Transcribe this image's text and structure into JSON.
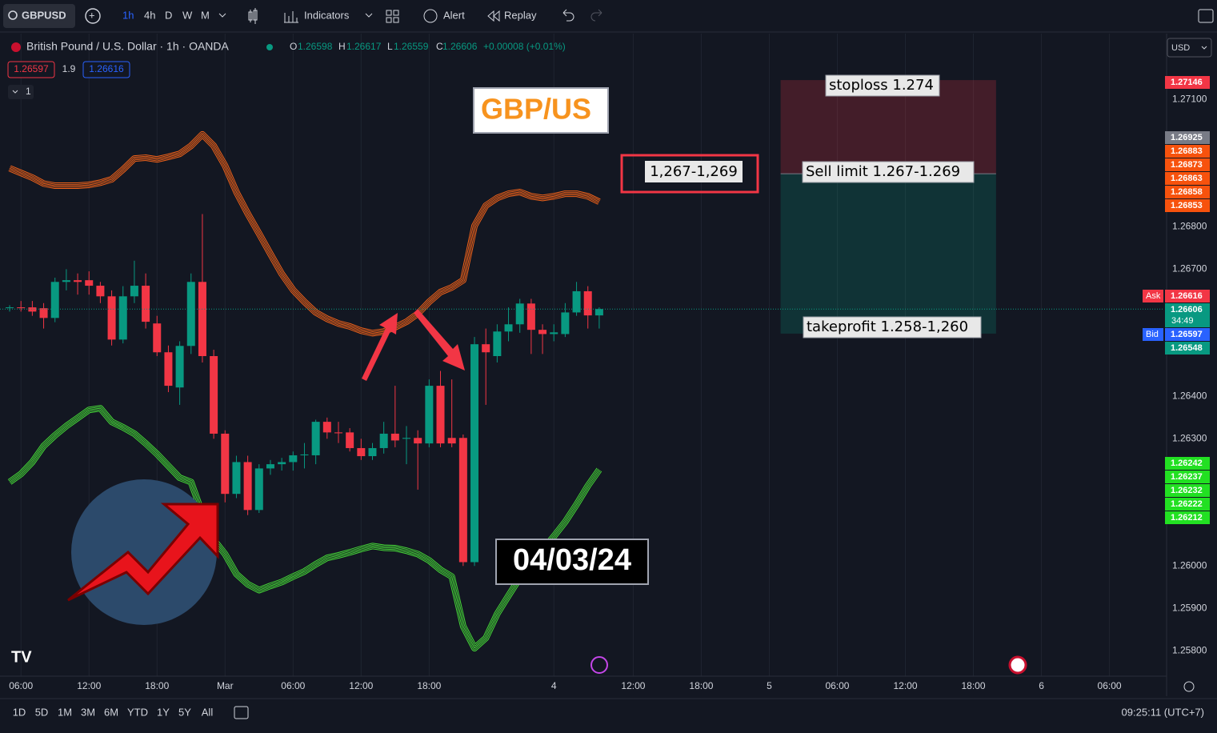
{
  "toolbar": {
    "symbol": "GBPUSD",
    "intervals": [
      "1h",
      "4h",
      "D",
      "W",
      "M"
    ],
    "indicators": "Indicators",
    "alert": "Alert",
    "replay": "Replay"
  },
  "legend": {
    "title": "British Pound / U.S. Dollar · 1h · OANDA",
    "o_label": "O",
    "o": "1.26598",
    "h_label": "H",
    "h": "1.26617",
    "l_label": "L",
    "l": "1.26559",
    "c_label": "C",
    "c": "1.26606",
    "change": "+0.00008 (+0.01%)",
    "bid": "1.26597",
    "spread": "1.9",
    "ask": "1.26616",
    "collapse": "1"
  },
  "currency": "USD",
  "price_tags": [
    {
      "text": "1.27146",
      "color": "#f23645"
    },
    {
      "text": "1.26925",
      "color": "#787b86"
    },
    {
      "text": "1.26883",
      "color": "#f7520d"
    },
    {
      "text": "1.26873",
      "color": "#f7520d"
    },
    {
      "text": "1.26863",
      "color": "#f7520d"
    },
    {
      "text": "1.26858",
      "color": "#f7520d"
    },
    {
      "text": "1.26853",
      "color": "#f7520d"
    },
    {
      "text": "1.26616",
      "color": "#f23645"
    },
    {
      "text": "1.26606",
      "color": "#089981"
    },
    {
      "text": "1.26597",
      "color": "#2962ff"
    },
    {
      "text": "1.26548",
      "color": "#089981"
    },
    {
      "text": "1.26242",
      "color": "#22e022"
    },
    {
      "text": "1.26237",
      "color": "#22e022"
    },
    {
      "text": "1.26232",
      "color": "#22e022"
    },
    {
      "text": "1.26222",
      "color": "#22e022"
    },
    {
      "text": "1.26212",
      "color": "#22e022"
    }
  ],
  "ask_label": "Ask",
  "bid_label": "Bid",
  "countdown": "34:49",
  "annotations": {
    "title": "GBP/US",
    "zone": "1,267-1,269",
    "stoploss": "stoploss 1.274",
    "sell": "Sell limit 1.267-1.269",
    "takeprofit": "takeprofit 1.258-1,260",
    "date": "04/03/24"
  },
  "bottom_bar": {
    "ranges": [
      "1D",
      "5D",
      "1M",
      "3M",
      "6M",
      "YTD",
      "1Y",
      "5Y",
      "All"
    ],
    "clock": "09:25:11 (UTC+7)"
  },
  "chart_data": {
    "type": "candlestick",
    "up_color": "#089981",
    "down_color": "#f23645",
    "x": [
      0,
      1,
      2,
      3,
      4,
      5,
      6,
      7,
      8,
      9,
      10,
      11,
      12,
      13,
      14,
      15,
      16,
      17,
      18,
      19,
      20,
      21,
      22,
      23,
      24,
      25,
      26,
      27,
      28,
      29,
      30,
      31,
      32,
      33,
      34,
      35,
      36,
      37,
      38,
      39,
      40,
      41,
      42,
      43,
      44,
      45,
      46,
      47,
      48,
      49,
      50,
      51,
      52
    ],
    "open": [
      1.26608,
      1.2661,
      1.2661,
      1.26608,
      1.26585,
      1.2667,
      1.26674,
      1.26674,
      1.26661,
      1.26636,
      1.26534,
      1.26636,
      1.26661,
      1.26572,
      1.26504,
      1.26421,
      1.26519,
      1.2667,
      1.26495,
      1.26312,
      1.2617,
      1.26245,
      1.26132,
      1.2623,
      1.2624,
      1.26245,
      1.26261,
      1.26261,
      1.2634,
      1.26315,
      1.26315,
      1.26278,
      1.26259,
      1.26278,
      1.26312,
      1.263,
      1.26302,
      1.26289,
      1.26425,
      1.26302,
      1.26302,
      1.26009,
      1.26523,
      1.26495,
      1.26553,
      1.2657,
      1.26619,
      1.26557,
      1.26547,
      1.26547,
      1.26598,
      1.26648,
      1.26591
    ],
    "high": [
      1.26615,
      1.26625,
      1.26625,
      1.2662,
      1.2668,
      1.267,
      1.2669,
      1.26695,
      1.2667,
      1.2665,
      1.2666,
      1.2672,
      1.2669,
      1.2659,
      1.2652,
      1.2653,
      1.2669,
      1.2683,
      1.2651,
      1.2632,
      1.2626,
      1.2626,
      1.2624,
      1.2625,
      1.26255,
      1.2627,
      1.2629,
      1.26345,
      1.2635,
      1.2634,
      1.26325,
      1.263,
      1.2629,
      1.2634,
      1.26425,
      1.2633,
      1.2632,
      1.2644,
      1.2646,
      1.2644,
      1.2631,
      1.2654,
      1.2656,
      1.2657,
      1.2661,
      1.2663,
      1.2663,
      1.2657,
      1.2657,
      1.2662,
      1.2667,
      1.2666,
      1.2661
    ],
    "low": [
      1.266,
      1.266,
      1.2659,
      1.2656,
      1.26575,
      1.2665,
      1.2664,
      1.2664,
      1.2662,
      1.2652,
      1.26525,
      1.2662,
      1.2656,
      1.26495,
      1.2641,
      1.2638,
      1.265,
      1.2648,
      1.263,
      1.2615,
      1.2616,
      1.2612,
      1.26125,
      1.26215,
      1.26225,
      1.26225,
      1.2623,
      1.2624,
      1.263,
      1.2629,
      1.2627,
      1.2625,
      1.2625,
      1.26265,
      1.2628,
      1.2624,
      1.2618,
      1.2628,
      1.2628,
      1.2628,
      1.26,
      1.26,
      1.2638,
      1.2648,
      1.2653,
      1.2655,
      1.265,
      1.265,
      1.2653,
      1.2654,
      1.2659,
      1.2656,
      1.2656
    ],
    "close": [
      1.2661,
      1.26608,
      1.266,
      1.26585,
      1.2667,
      1.26674,
      1.2667,
      1.26661,
      1.26636,
      1.26534,
      1.26636,
      1.26661,
      1.26576,
      1.26504,
      1.26425,
      1.26519,
      1.2667,
      1.26495,
      1.26312,
      1.2617,
      1.26245,
      1.26132,
      1.2623,
      1.2624,
      1.26245,
      1.26261,
      1.26263,
      1.2634,
      1.26315,
      1.26313,
      1.26278,
      1.26259,
      1.26278,
      1.26312,
      1.26296,
      1.26302,
      1.26289,
      1.26425,
      1.26289,
      1.26289,
      1.26009,
      1.26523,
      1.26504,
      1.26553,
      1.2657,
      1.26619,
      1.26557,
      1.26547,
      1.26551,
      1.26598,
      1.26648,
      1.26591,
      1.26606
    ],
    "bands": [
      {
        "color": "#f0621a",
        "values": [
          1.26938,
          1.26927,
          1.26916,
          1.26902,
          1.26897,
          1.26897,
          1.26897,
          1.26899,
          1.26904,
          1.26912,
          1.26935,
          1.26961,
          1.26963,
          1.26959,
          1.26965,
          1.26972,
          1.26991,
          1.27018,
          1.26991,
          1.26944,
          1.26882,
          1.26831,
          1.26784,
          1.26736,
          1.26689,
          1.26651,
          1.26623,
          1.26598,
          1.26583,
          1.26572,
          1.26565,
          1.26555,
          1.26549,
          1.26553,
          1.26563,
          1.26576,
          1.26595,
          1.26623,
          1.26646,
          1.26657,
          1.26674,
          1.26802,
          1.2685,
          1.26868,
          1.26878,
          1.26882,
          1.26872,
          1.26868,
          1.26872,
          1.26878,
          1.26878,
          1.26872,
          1.26859
        ]
      },
      {
        "color": "#46d838",
        "values": [
          1.26198,
          1.26217,
          1.26245,
          1.26283,
          1.26308,
          1.2633,
          1.26349,
          1.26368,
          1.26372,
          1.2634,
          1.26327,
          1.26312,
          1.26289,
          1.26264,
          1.26236,
          1.26208,
          1.26198,
          1.26123,
          1.26062,
          1.26028,
          1.25981,
          1.25957,
          1.25943,
          1.25953,
          1.25962,
          1.25975,
          1.25987,
          1.26004,
          1.26019,
          1.26025,
          1.26032,
          1.2604,
          1.26047,
          1.26043,
          1.26042,
          1.26036,
          1.26028,
          1.26013,
          1.25991,
          1.25975,
          1.25858,
          1.25806,
          1.2583,
          1.25887,
          1.2593,
          1.25972,
          1.26006,
          1.26038,
          1.2607,
          1.26104,
          1.26145,
          1.26189,
          1.26227
        ]
      }
    ],
    "position": {
      "stop": 1.27146,
      "entry": 1.26925,
      "target": 1.26548,
      "start_index": 68,
      "end_index": 87
    },
    "xlim": [
      -0.85,
      101.83
    ],
    "xticks": [
      {
        "value": 1,
        "label": "06:00"
      },
      {
        "value": 7,
        "label": "12:00"
      },
      {
        "value": 13,
        "label": "18:00"
      },
      {
        "value": 19,
        "label": "Mar"
      },
      {
        "value": 25,
        "label": "06:00"
      },
      {
        "value": 31,
        "label": "12:00"
      },
      {
        "value": 37,
        "label": "18:00"
      },
      {
        "value": 48,
        "label": "4"
      },
      {
        "value": 55,
        "label": "12:00"
      },
      {
        "value": 61,
        "label": "18:00"
      },
      {
        "value": 67,
        "label": "5"
      },
      {
        "value": 73,
        "label": "06:00"
      },
      {
        "value": 79,
        "label": "12:00"
      },
      {
        "value": 85,
        "label": "18:00"
      },
      {
        "value": 91,
        "label": "6"
      },
      {
        "value": 97,
        "label": "06:00"
      }
    ],
    "ylim": [
      1.2574,
      1.2725
    ],
    "yticks": [
      {
        "value": 1.258,
        "label": "1.25800"
      },
      {
        "value": 1.259,
        "label": "1.25900"
      },
      {
        "value": 1.26,
        "label": "1.26000"
      },
      {
        "value": 1.263,
        "label": "1.26300"
      },
      {
        "value": 1.264,
        "label": "1.26400"
      },
      {
        "value": 1.267,
        "label": "1.26700"
      },
      {
        "value": 1.268,
        "label": "1.26800"
      },
      {
        "value": 1.271,
        "label": "1.27100"
      }
    ],
    "grid": true
  }
}
